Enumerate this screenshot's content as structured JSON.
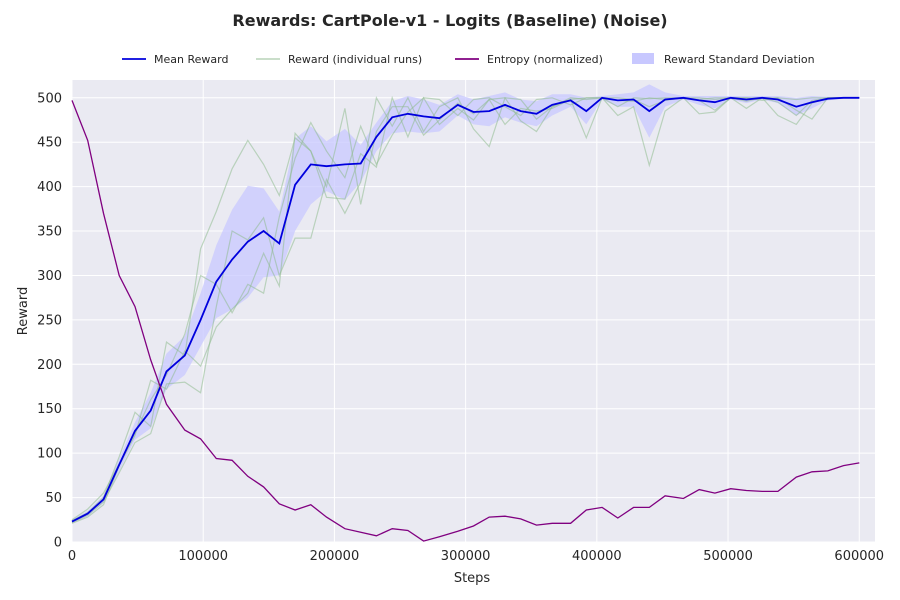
{
  "chart_data": {
    "type": "line",
    "title": "Rewards: CartPole-v1 - Logits (Baseline) (Noise)",
    "xlabel": "Steps",
    "ylabel": "Reward",
    "xlim": [
      0,
      612000
    ],
    "ylim": [
      0,
      520
    ],
    "x_ticks": [
      0,
      100000,
      200000,
      300000,
      400000,
      500000,
      600000
    ],
    "x_tick_labels": [
      "0",
      "100000",
      "200000",
      "300000",
      "400000",
      "500000",
      "600000"
    ],
    "y_ticks": [
      0,
      50,
      100,
      150,
      200,
      250,
      300,
      350,
      400,
      450,
      500
    ],
    "y_tick_labels": [
      "0",
      "50",
      "100",
      "150",
      "200",
      "250",
      "300",
      "350",
      "400",
      "450",
      "500"
    ],
    "grid": true,
    "legend_position": "top",
    "colors": {
      "plot_bg": "#eaeaf2",
      "grid": "#ffffff",
      "mean": "#0000dd",
      "runs": "#8fbc8f",
      "entropy": "#800080",
      "std_band": "#c8c8ff"
    },
    "legend": [
      {
        "label": "Mean Reward",
        "kind": "line",
        "color": "#0000dd"
      },
      {
        "label": "Reward (individual runs)",
        "kind": "line",
        "color": "#8fbc8f"
      },
      {
        "label": "Entropy (normalized)",
        "kind": "line",
        "color": "#800080"
      },
      {
        "label": "Reward Standard Deviation",
        "kind": "band",
        "color": "#c8c8ff"
      }
    ],
    "x": [
      0,
      12000,
      24000,
      36000,
      48000,
      60000,
      72000,
      86000,
      98000,
      110000,
      122000,
      134000,
      146000,
      158000,
      170000,
      182000,
      194000,
      208000,
      220000,
      232000,
      244000,
      256000,
      268000,
      280000,
      294000,
      306000,
      318000,
      330000,
      342000,
      354000,
      366000,
      380000,
      392000,
      404000,
      416000,
      428000,
      440000,
      452000,
      466000,
      478000,
      490000,
      502000,
      514000,
      526000,
      538000,
      552000,
      564000,
      576000,
      588000,
      600000
    ],
    "series": [
      {
        "name": "Mean Reward",
        "values": [
          23,
          32,
          48,
          87,
          125,
          148,
          192,
          210,
          250,
          293,
          318,
          338,
          350,
          336,
          402,
          425,
          423,
          425,
          426,
          456,
          478,
          482,
          479,
          477,
          492,
          484,
          485,
          492,
          485,
          482,
          492,
          497,
          485,
          500,
          497,
          498,
          485,
          498,
          500,
          497,
          495,
          500,
          498,
          500,
          498,
          490,
          495,
          499,
          500,
          500
        ]
      },
      {
        "name": "Reward Standard Deviation",
        "lower": [
          21,
          29,
          44,
          80,
          115,
          128,
          172,
          188,
          220,
          252,
          262,
          275,
          298,
          300,
          350,
          380,
          395,
          385,
          405,
          440,
          460,
          462,
          460,
          462,
          480,
          470,
          468,
          478,
          472,
          468,
          480,
          490,
          470,
          498,
          490,
          490,
          455,
          490,
          498,
          492,
          488,
          498,
          494,
          498,
          494,
          480,
          488,
          497,
          499,
          499
        ],
        "upper": [
          25,
          35,
          52,
          94,
          135,
          168,
          212,
          232,
          280,
          334,
          374,
          401,
          398,
          372,
          454,
          468,
          451,
          465,
          447,
          472,
          496,
          502,
          498,
          492,
          504,
          498,
          502,
          506,
          498,
          496,
          504,
          504,
          500,
          502,
          504,
          506,
          515,
          506,
          502,
          502,
          502,
          502,
          502,
          502,
          502,
          500,
          502,
          501,
          501,
          501
        ]
      },
      {
        "name": "Reward (individual runs)",
        "runs": [
          [
            24,
            33,
            50,
            96,
            146,
            130,
            225,
            210,
            330,
            372,
            420,
            452,
            425,
            390,
            455,
            440,
            388,
            386,
            437,
            422,
            500,
            456,
            500,
            470,
            488,
            475,
            498,
            500,
            474,
            462,
            490,
            498,
            455,
            500,
            480,
            490,
            424,
            485,
            500,
            482,
            484,
            500,
            488,
            500,
            480,
            470,
            494,
            500,
            500,
            500
          ],
          [
            22,
            30,
            45,
            78,
            112,
            122,
            178,
            180,
            168,
            265,
            350,
            340,
            365,
            300,
            342,
            342,
            408,
            370,
            405,
            500,
            468,
            500,
            462,
            490,
            500,
            465,
            445,
            500,
            498,
            476,
            490,
            500,
            498,
            500,
            490,
            500,
            499,
            500,
            500,
            497,
            486,
            500,
            500,
            500,
            500,
            486,
            476,
            500,
            500,
            500
          ],
          [
            21,
            28,
            42,
            86,
            120,
            182,
            172,
            215,
            198,
            242,
            262,
            280,
            325,
            288,
            460,
            440,
            400,
            488,
            380,
            462,
            490,
            490,
            458,
            475,
            494,
            482,
            498,
            470,
            488,
            485,
            488,
            498,
            500,
            500,
            497,
            496,
            500,
            498,
            500,
            498,
            500,
            500,
            496,
            500,
            495,
            480,
            497,
            500,
            500,
            500
          ],
          [
            25,
            37,
            55,
            88,
            122,
            160,
            188,
            234,
            300,
            290,
            258,
            290,
            280,
            366,
            432,
            472,
            440,
            410,
            468,
            425,
            458,
            484,
            500,
            498,
            480,
            498,
            500,
            490,
            480,
            498,
            500,
            492,
            500,
            500,
            500,
            498,
            490,
            497,
            500,
            500,
            498,
            500,
            500,
            497,
            500,
            498,
            500,
            500,
            500,
            500
          ]
        ]
      },
      {
        "name": "Entropy (normalized)",
        "values": [
          497,
          452,
          370,
          300,
          265,
          205,
          155,
          126,
          116,
          94,
          92,
          74,
          62,
          43,
          36,
          42,
          28,
          15,
          11,
          7,
          15,
          13,
          1,
          6,
          12,
          18,
          28,
          29,
          26,
          19,
          21,
          21,
          36,
          39,
          27,
          39,
          39,
          52,
          49,
          59,
          55,
          60,
          58,
          57,
          57,
          73,
          79,
          80,
          86,
          89
        ]
      }
    ]
  }
}
